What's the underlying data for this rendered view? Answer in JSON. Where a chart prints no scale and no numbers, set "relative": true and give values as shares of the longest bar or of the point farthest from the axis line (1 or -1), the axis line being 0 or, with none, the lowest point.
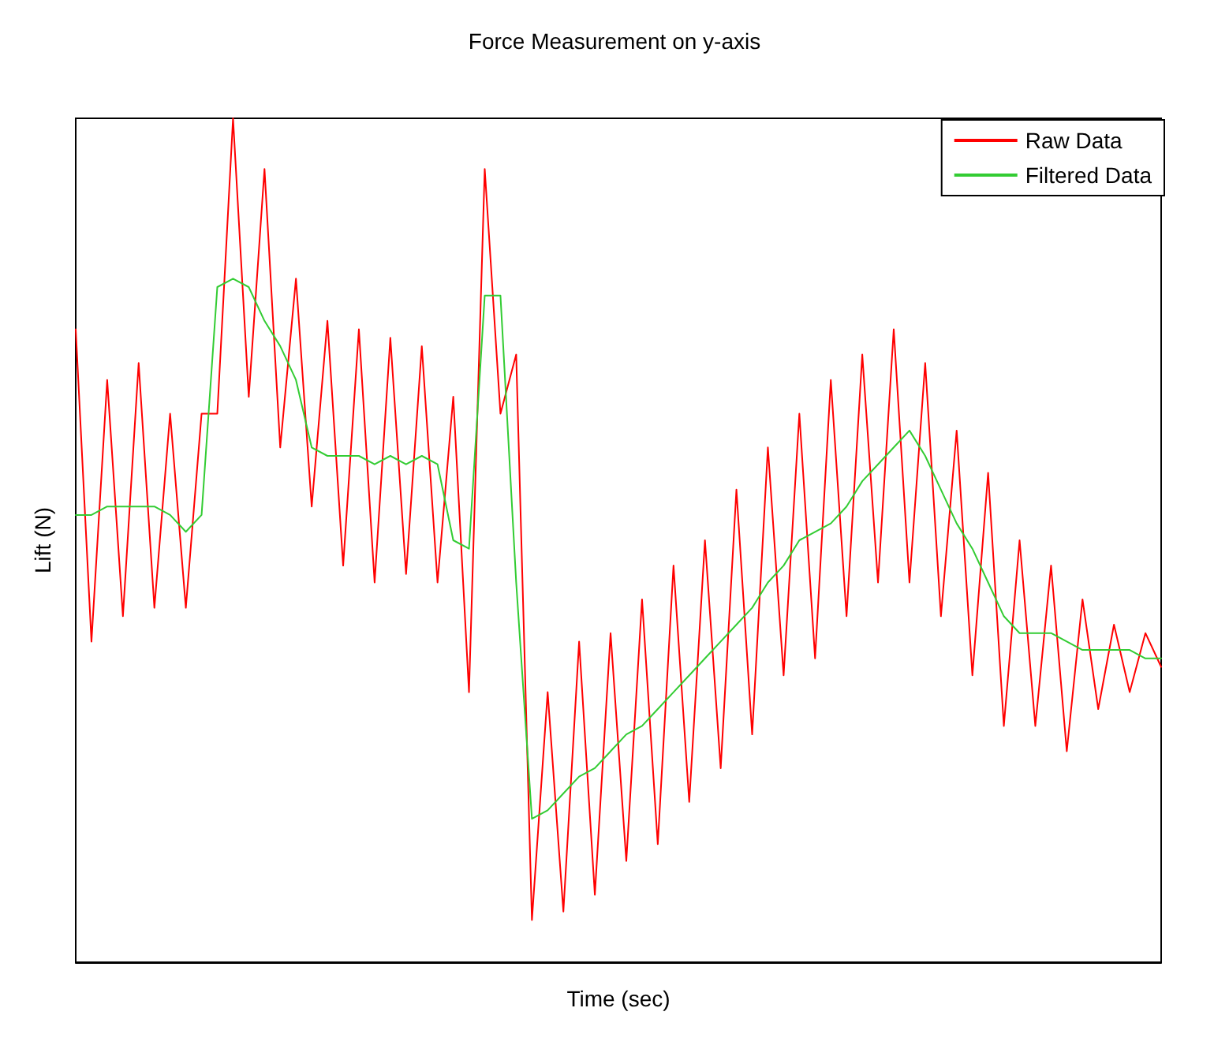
{
  "chart_data": {
    "type": "line",
    "title": "Force Measurement on y-axis",
    "xlabel": "Time (sec)",
    "ylabel": "Lift (N)",
    "relative": true,
    "grid": false,
    "legend": "top right",
    "marker": "none",
    "line_style": "solid",
    "categories": [
      null,
      null,
      null,
      null,
      null,
      null,
      null,
      null,
      null,
      null,
      null,
      null,
      null,
      null,
      null,
      null,
      null,
      null,
      null,
      null,
      null,
      null,
      null,
      null,
      null,
      null,
      null,
      null,
      null,
      null,
      null,
      null,
      null,
      null,
      null,
      null,
      null,
      null,
      null,
      null,
      null,
      null,
      null,
      null,
      null,
      null,
      null,
      null,
      null,
      null,
      null,
      null,
      null,
      null,
      null,
      null,
      null,
      null,
      null,
      null,
      null,
      null,
      null,
      null,
      null,
      null,
      null,
      null,
      null,
      null
    ],
    "series": [
      {
        "name": "Raw Data",
        "color": "#ff0000",
        "values": [
          0.75,
          0.38,
          0.69,
          0.41,
          0.71,
          0.42,
          0.65,
          0.42,
          0.65,
          0.65,
          1.0,
          0.67,
          0.94,
          0.61,
          0.81,
          0.54,
          0.76,
          0.47,
          0.75,
          0.45,
          0.74,
          0.46,
          0.73,
          0.45,
          0.67,
          0.32,
          0.94,
          0.65,
          0.72,
          0.05,
          0.32,
          0.06,
          0.38,
          0.08,
          0.39,
          0.12,
          0.43,
          0.14,
          0.47,
          0.19,
          0.5,
          0.23,
          0.56,
          0.27,
          0.61,
          0.34,
          0.65,
          0.36,
          0.69,
          0.41,
          0.72,
          0.45,
          0.75,
          0.45,
          0.71,
          0.41,
          0.63,
          0.34,
          0.58,
          0.28,
          0.5,
          0.28,
          0.47,
          0.25,
          0.43,
          0.3,
          0.4,
          0.32,
          0.39,
          0.35
        ]
      },
      {
        "name": "Filtered Data",
        "color": "#33cc33",
        "values": [
          0.53,
          0.53,
          0.54,
          0.54,
          0.54,
          0.54,
          0.53,
          0.51,
          0.53,
          0.8,
          0.81,
          0.8,
          0.76,
          0.73,
          0.69,
          0.61,
          0.6,
          0.6,
          0.6,
          0.59,
          0.6,
          0.59,
          0.6,
          0.59,
          0.5,
          0.49,
          0.79,
          0.79,
          0.45,
          0.17,
          0.18,
          0.2,
          0.22,
          0.23,
          0.25,
          0.27,
          0.28,
          0.3,
          0.32,
          0.34,
          0.36,
          0.38,
          0.4,
          0.42,
          0.45,
          0.47,
          0.5,
          0.51,
          0.52,
          0.54,
          0.57,
          0.59,
          0.61,
          0.63,
          0.6,
          0.56,
          0.52,
          0.49,
          0.45,
          0.41,
          0.39,
          0.39,
          0.39,
          0.38,
          0.37,
          0.37,
          0.37,
          0.37,
          0.36,
          0.36
        ]
      }
    ]
  }
}
